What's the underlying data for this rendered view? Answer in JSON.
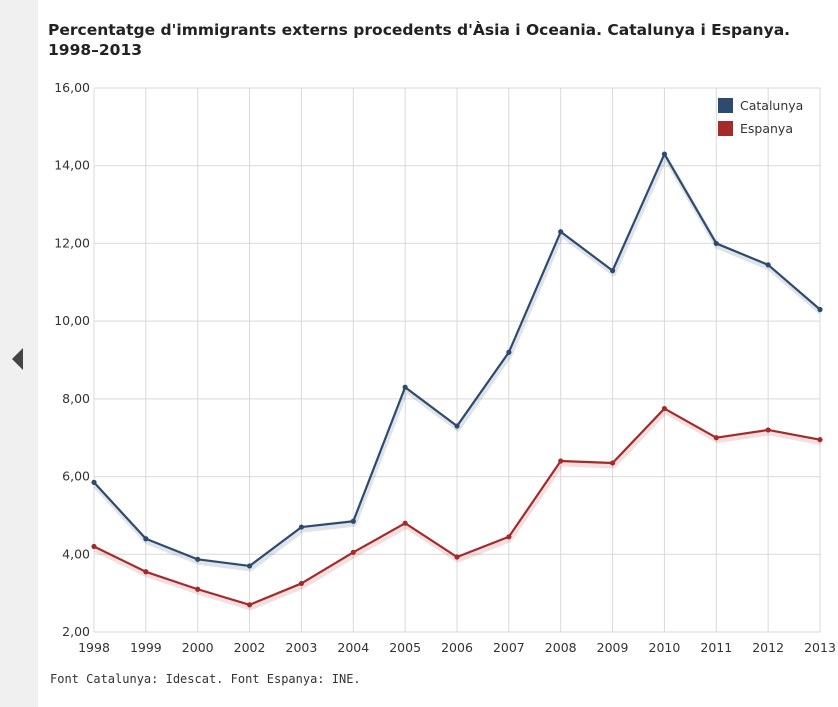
{
  "nav": {
    "prev_icon": "chevron-left-icon"
  },
  "chart_data": {
    "type": "line",
    "title": "Percentatge d'immigrants externs procedents d'Àsia i Oceania. Catalunya i Espanya. 1998–2013",
    "xlabel": "",
    "ylabel": "",
    "categories": [
      "1998",
      "1999",
      "2000",
      "2002",
      "2003",
      "2004",
      "2005",
      "2006",
      "2007",
      "2008",
      "2009",
      "2010",
      "2011",
      "2012",
      "2013"
    ],
    "ylim": [
      2,
      16
    ],
    "yticks": [
      2,
      4,
      6,
      8,
      10,
      12,
      14,
      16
    ],
    "ytick_labels": [
      "2,00",
      "4,00",
      "6,00",
      "8,00",
      "10,00",
      "12,00",
      "14,00",
      "16,00"
    ],
    "grid": true,
    "legend_position": "top-right",
    "series": [
      {
        "name": "Catalunya",
        "color": "#2e4a6e",
        "values": [
          5.85,
          4.4,
          3.87,
          3.7,
          4.7,
          4.85,
          8.3,
          7.3,
          9.2,
          12.3,
          11.3,
          14.3,
          12.0,
          11.45,
          10.3
        ]
      },
      {
        "name": "Espanya",
        "color": "#a52a2a",
        "values": [
          4.2,
          3.55,
          3.1,
          2.7,
          3.25,
          4.05,
          4.8,
          3.93,
          4.45,
          6.4,
          6.35,
          7.75,
          7.0,
          7.2,
          6.95
        ]
      }
    ]
  },
  "footer": {
    "source": "Font Catalunya: Idescat. Font Espanya: INE."
  }
}
